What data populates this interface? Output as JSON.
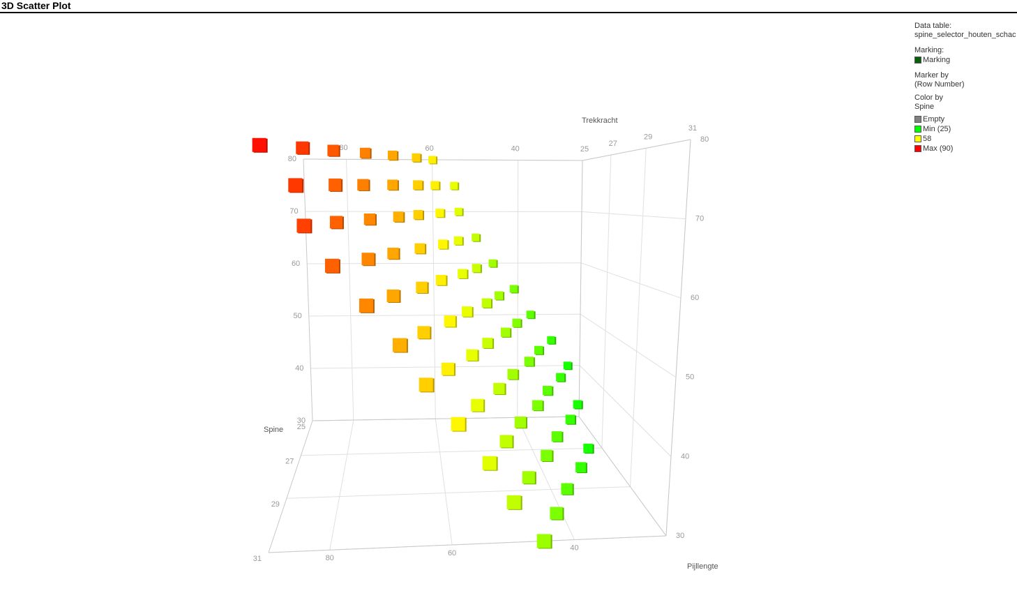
{
  "header": {
    "title": "3D Scatter Plot"
  },
  "legend": {
    "data_table_label": "Data table:",
    "data_table": "spine_selector_houten_schac",
    "marking_label": "Marking:",
    "marking": {
      "label": "Marking",
      "color": "#0b5e0b"
    },
    "marker_by_label": "Marker by",
    "marker_by": "(Row Number)",
    "color_by_label": "Color by",
    "color_by": "Spine",
    "entries": [
      {
        "label": "Empty",
        "color": "#808080"
      },
      {
        "value": 25,
        "label": "Min (25)",
        "color": "#00ff00"
      },
      {
        "value": 58,
        "color": "#ffff00"
      },
      {
        "value": 90,
        "label": "Max (90)",
        "color": "#ff0000"
      }
    ]
  },
  "chart_data": {
    "type": "scatter3d",
    "x_label": "Spine",
    "y_label": "Trekkracht",
    "z_label": "Pijllengte",
    "xlim": [
      90,
      25
    ],
    "xticks": [
      80,
      60,
      40
    ],
    "ylim": [
      30,
      80
    ],
    "yticks": [
      30,
      40,
      50,
      60,
      70,
      80
    ],
    "zlim": [
      25,
      31
    ],
    "zticks": [
      25,
      27,
      29,
      31
    ],
    "grid": true,
    "x": [
      60,
      55,
      54,
      50,
      46,
      41,
      37,
      32,
      28,
      64,
      60,
      59,
      55,
      51,
      46,
      42,
      37,
      32,
      28,
      69,
      64,
      64,
      59,
      55,
      50,
      46,
      41,
      37,
      32,
      28,
      74,
      69,
      68,
      64,
      60,
      55,
      51,
      46,
      41,
      37,
      32,
      79,
      74,
      73,
      69,
      64,
      59,
      55,
      50,
      46,
      41,
      37,
      83,
      78,
      78,
      73,
      69,
      64,
      60,
      55,
      50,
      46,
      41,
      88,
      83,
      82,
      78,
      73,
      68,
      64,
      59,
      54,
      50,
      45
    ],
    "y": [
      80,
      75,
      70,
      65,
      60,
      55,
      50,
      45,
      40,
      80,
      75,
      70,
      65,
      60,
      55,
      50,
      45,
      40,
      35,
      80,
      75,
      70,
      65,
      60,
      55,
      50,
      45,
      40,
      35,
      30,
      80,
      75,
      70,
      65,
      60,
      55,
      50,
      45,
      40,
      35,
      30,
      80,
      75,
      70,
      65,
      60,
      55,
      50,
      45,
      40,
      35,
      30,
      80,
      75,
      70,
      65,
      60,
      55,
      50,
      45,
      40,
      35,
      30,
      80,
      75,
      70,
      65,
      60,
      55,
      50,
      45,
      40,
      35,
      30
    ],
    "z": [
      25,
      25,
      25,
      25,
      25,
      25,
      25,
      25,
      25,
      26,
      26,
      26,
      26,
      26,
      26,
      26,
      26,
      26,
      26,
      27,
      27,
      27,
      27,
      27,
      27,
      27,
      27,
      27,
      27,
      27,
      28,
      28,
      28,
      28,
      28,
      28,
      28,
      28,
      28,
      28,
      28,
      29,
      29,
      29,
      29,
      29,
      29,
      29,
      29,
      29,
      29,
      29,
      30,
      30,
      30,
      30,
      30,
      30,
      30,
      30,
      30,
      30,
      30,
      31,
      31,
      31,
      31,
      31,
      31,
      31,
      31,
      31,
      31,
      31
    ]
  }
}
